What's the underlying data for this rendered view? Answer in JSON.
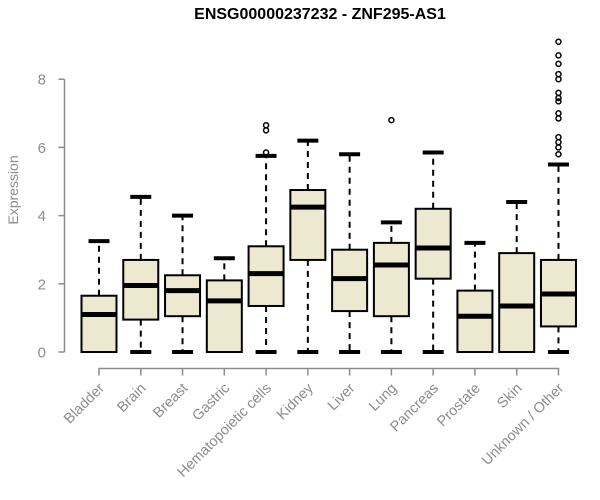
{
  "chart_data": {
    "type": "boxplot",
    "title": "ENSG00000237232 - ZNF295-AS1",
    "ylabel": "Expression",
    "xlabel": "",
    "ylim": [
      0,
      9.3
    ],
    "yticks": [
      0,
      2,
      4,
      6,
      8
    ],
    "grid": false,
    "x_label_rotation_deg": 45,
    "legend": "none",
    "colors": {
      "box_fill": "#EDE8D0",
      "box_stroke": "#000000",
      "whisker": "#000000",
      "median": "#000000",
      "axis": "#8C8C8C",
      "title": "#000000"
    },
    "categories": [
      "Bladder",
      "Brain",
      "Breast",
      "Gastric",
      "Hematopoietic cells",
      "Kidney",
      "Liver",
      "Lung",
      "Pancreas",
      "Prostate",
      "Skin",
      "Unknown / Other"
    ],
    "boxes": [
      {
        "category": "Bladder",
        "whisker_low": 0,
        "q1": 0,
        "median": 1.1,
        "q3": 1.65,
        "whisker_high": 3.25,
        "outliers": []
      },
      {
        "category": "Brain",
        "whisker_low": 0,
        "q1": 0.95,
        "median": 1.95,
        "q3": 2.7,
        "whisker_high": 4.55,
        "outliers": []
      },
      {
        "category": "Breast",
        "whisker_low": 0,
        "q1": 1.05,
        "median": 1.8,
        "q3": 2.25,
        "whisker_high": 4.0,
        "outliers": []
      },
      {
        "category": "Gastric",
        "whisker_low": 0,
        "q1": 0,
        "median": 1.5,
        "q3": 2.1,
        "whisker_high": 2.75,
        "outliers": []
      },
      {
        "category": "Hematopoietic cells",
        "whisker_low": 0,
        "q1": 1.35,
        "median": 2.3,
        "q3": 3.1,
        "whisker_high": 5.75,
        "outliers": [
          6.65,
          6.5,
          5.85
        ]
      },
      {
        "category": "Kidney",
        "whisker_low": 0,
        "q1": 2.7,
        "median": 4.25,
        "q3": 4.75,
        "whisker_high": 6.2,
        "outliers": []
      },
      {
        "category": "Liver",
        "whisker_low": 0,
        "q1": 1.2,
        "median": 2.15,
        "q3": 3.0,
        "whisker_high": 5.8,
        "outliers": []
      },
      {
        "category": "Lung",
        "whisker_low": 0,
        "q1": 1.05,
        "median": 2.55,
        "q3": 3.2,
        "whisker_high": 3.8,
        "outliers": [
          6.8
        ]
      },
      {
        "category": "Pancreas",
        "whisker_low": 0,
        "q1": 2.15,
        "median": 3.05,
        "q3": 4.2,
        "whisker_high": 5.85,
        "outliers": []
      },
      {
        "category": "Prostate",
        "whisker_low": 0,
        "q1": 0,
        "median": 1.05,
        "q3": 1.8,
        "whisker_high": 3.2,
        "outliers": []
      },
      {
        "category": "Skin",
        "whisker_low": 0,
        "q1": 0,
        "median": 1.35,
        "q3": 2.9,
        "whisker_high": 4.4,
        "outliers": []
      },
      {
        "category": "Unknown / Other",
        "whisker_low": 0,
        "q1": 0.75,
        "median": 1.7,
        "q3": 2.7,
        "whisker_high": 5.5,
        "outliers": [
          9.1,
          8.7,
          8.45,
          8.15,
          8.0,
          7.6,
          7.45,
          7.35,
          7.0,
          6.85,
          6.3,
          6.15,
          6.0,
          5.8
        ]
      }
    ]
  }
}
